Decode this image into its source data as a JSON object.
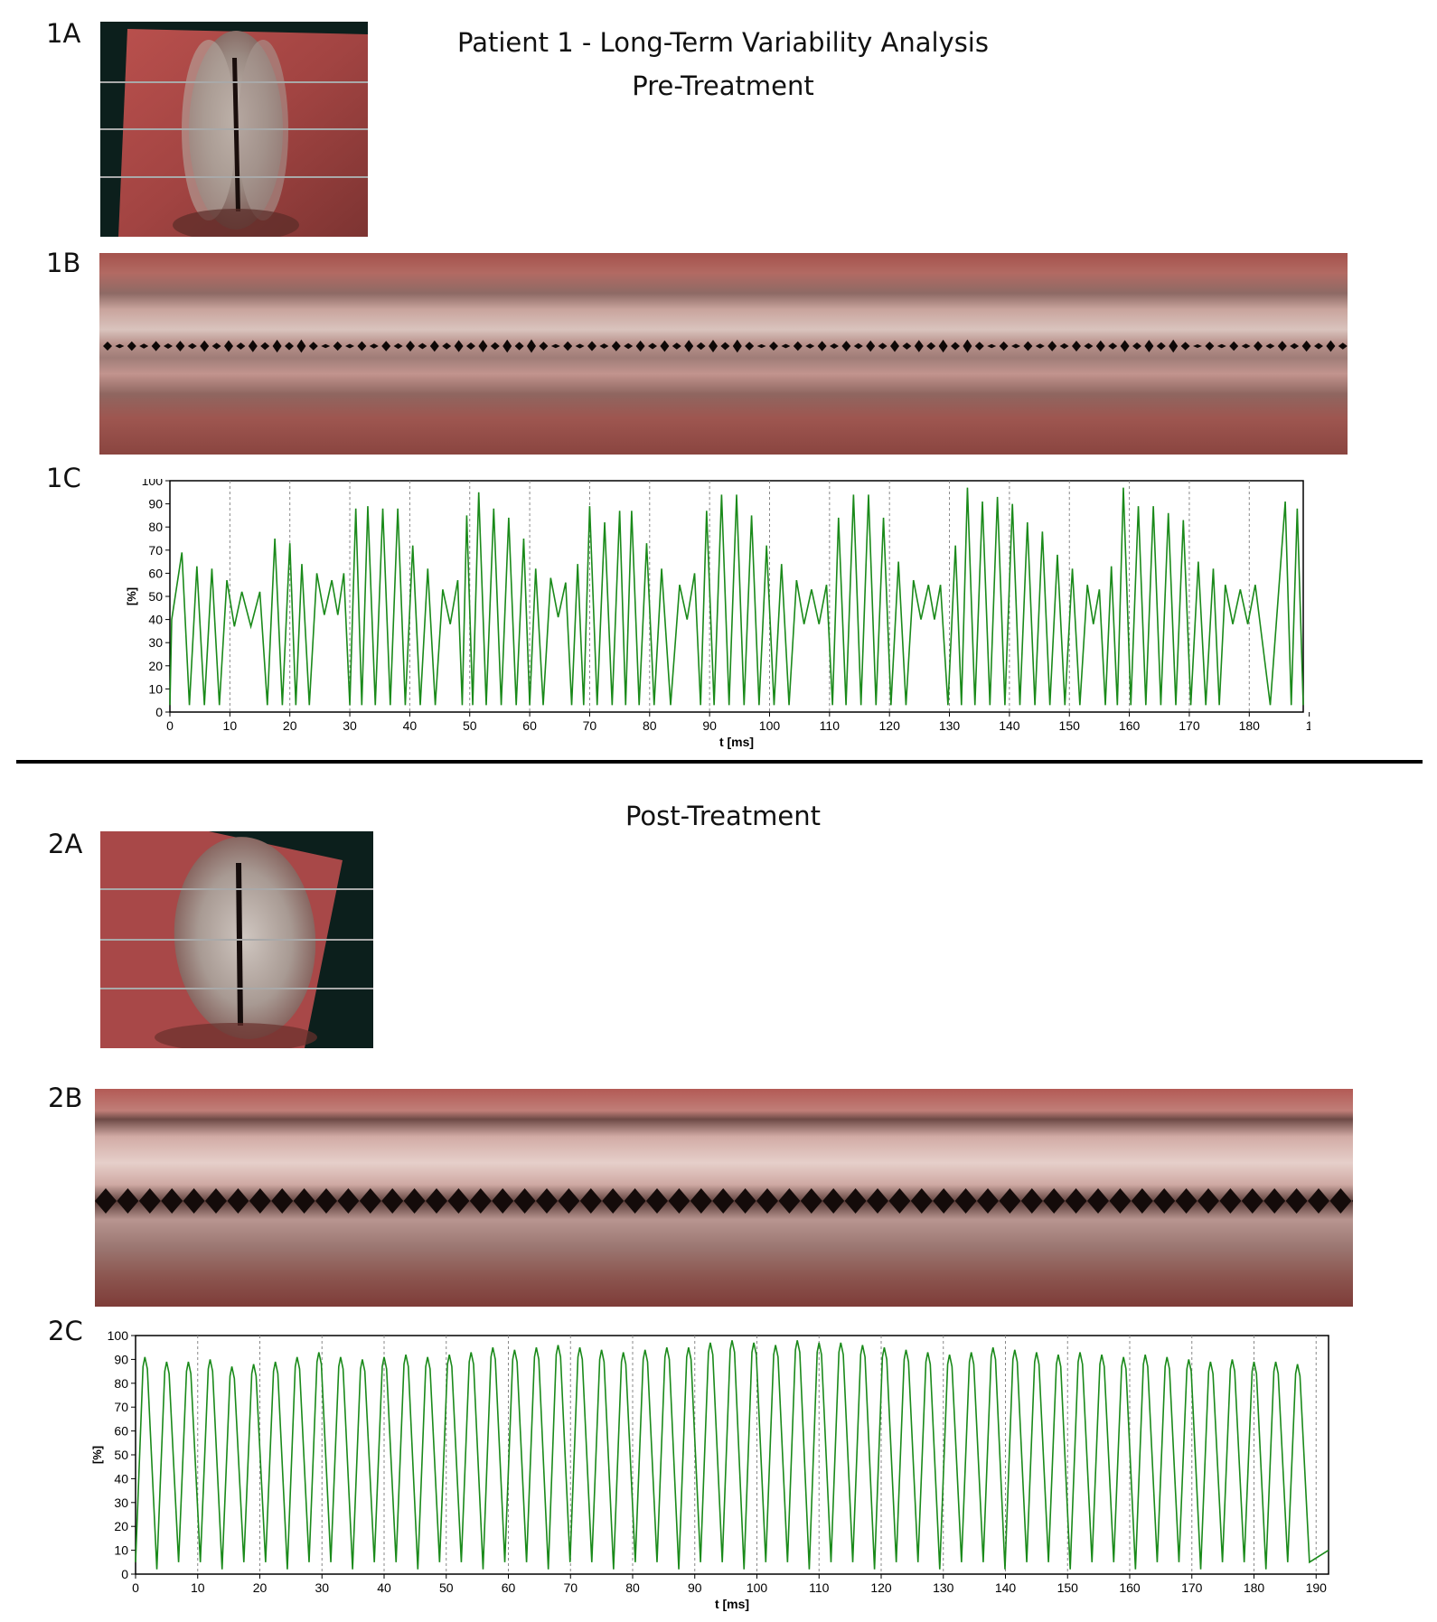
{
  "title": "Patient 1 - Long-Term Variability Analysis",
  "section_pre": "Pre-Treatment",
  "section_post": "Post-Treatment",
  "labels": {
    "p1a": "1A",
    "p1b": "1B",
    "p1c": "1C",
    "p2a": "2A",
    "p2b": "2B",
    "p2c": "2C"
  },
  "chart_data": [
    {
      "id": "1C",
      "type": "line",
      "xlabel": "t [ms]",
      "ylabel": "[%]",
      "xlim": [
        0,
        189
      ],
      "ylim": [
        0,
        100
      ],
      "xticks": [
        "0",
        "10",
        "20",
        "30",
        "40",
        "50",
        "60",
        "70",
        "80",
        "90",
        "100",
        "110",
        "120",
        "130",
        "140",
        "150",
        "160",
        "170",
        "180",
        "1"
      ],
      "yticks": [
        "0",
        "10",
        "20",
        "30",
        "40",
        "50",
        "60",
        "70",
        "80",
        "90",
        "100"
      ],
      "grid": "vertical dashed",
      "color": "#1a8a1a",
      "peaks": [
        {
          "t": 2,
          "v": 69
        },
        {
          "t": 4.5,
          "v": 63
        },
        {
          "t": 7,
          "v": 62
        },
        {
          "t": 9.5,
          "v": 57
        },
        {
          "t": 12,
          "v": 52
        },
        {
          "t": 15,
          "v": 52
        },
        {
          "t": 17.5,
          "v": 75
        },
        {
          "t": 20,
          "v": 73
        },
        {
          "t": 22,
          "v": 64
        },
        {
          "t": 24.5,
          "v": 60
        },
        {
          "t": 27,
          "v": 57
        },
        {
          "t": 29,
          "v": 60
        },
        {
          "t": 31,
          "v": 88
        },
        {
          "t": 33,
          "v": 89
        },
        {
          "t": 35.5,
          "v": 88
        },
        {
          "t": 38,
          "v": 88
        },
        {
          "t": 40.5,
          "v": 72
        },
        {
          "t": 43,
          "v": 62
        },
        {
          "t": 45.5,
          "v": 53
        },
        {
          "t": 48,
          "v": 57
        },
        {
          "t": 49.5,
          "v": 85
        },
        {
          "t": 51.5,
          "v": 95
        },
        {
          "t": 54,
          "v": 88
        },
        {
          "t": 56.5,
          "v": 84
        },
        {
          "t": 59,
          "v": 75
        },
        {
          "t": 61,
          "v": 62
        },
        {
          "t": 63.5,
          "v": 58
        },
        {
          "t": 66,
          "v": 56
        },
        {
          "t": 68,
          "v": 64
        },
        {
          "t": 70,
          "v": 89
        },
        {
          "t": 72.5,
          "v": 82
        },
        {
          "t": 75,
          "v": 87
        },
        {
          "t": 77,
          "v": 87
        },
        {
          "t": 79.5,
          "v": 73
        },
        {
          "t": 82,
          "v": 62
        },
        {
          "t": 85,
          "v": 55
        },
        {
          "t": 87.5,
          "v": 60
        },
        {
          "t": 89.5,
          "v": 87
        },
        {
          "t": 92,
          "v": 94
        },
        {
          "t": 94.5,
          "v": 94
        },
        {
          "t": 97,
          "v": 85
        },
        {
          "t": 99.5,
          "v": 72
        },
        {
          "t": 102,
          "v": 64
        },
        {
          "t": 104.5,
          "v": 57
        },
        {
          "t": 107,
          "v": 53
        },
        {
          "t": 109.5,
          "v": 55
        },
        {
          "t": 111.5,
          "v": 84
        },
        {
          "t": 114,
          "v": 94
        },
        {
          "t": 116.5,
          "v": 94
        },
        {
          "t": 119,
          "v": 84
        },
        {
          "t": 121.5,
          "v": 65
        },
        {
          "t": 124,
          "v": 57
        },
        {
          "t": 126.5,
          "v": 55
        },
        {
          "t": 128.5,
          "v": 55
        },
        {
          "t": 131,
          "v": 72
        },
        {
          "t": 133,
          "v": 97
        },
        {
          "t": 135.5,
          "v": 91
        },
        {
          "t": 138,
          "v": 93
        },
        {
          "t": 140.5,
          "v": 90
        },
        {
          "t": 143,
          "v": 82
        },
        {
          "t": 145.5,
          "v": 78
        },
        {
          "t": 148,
          "v": 68
        },
        {
          "t": 150.5,
          "v": 62
        },
        {
          "t": 153,
          "v": 55
        },
        {
          "t": 155,
          "v": 53
        },
        {
          "t": 157,
          "v": 63
        },
        {
          "t": 159,
          "v": 97
        },
        {
          "t": 161.5,
          "v": 89
        },
        {
          "t": 164,
          "v": 89
        },
        {
          "t": 166.5,
          "v": 86
        },
        {
          "t": 169,
          "v": 83
        },
        {
          "t": 171.5,
          "v": 65
        },
        {
          "t": 174,
          "v": 62
        },
        {
          "t": 176,
          "v": 55
        },
        {
          "t": 178.5,
          "v": 53
        },
        {
          "t": 181,
          "v": 55
        },
        {
          "t": 186,
          "v": 91
        },
        {
          "t": 188,
          "v": 88
        }
      ]
    },
    {
      "id": "2C",
      "type": "line",
      "xlabel": "t [ms]",
      "ylabel": "[%]",
      "xlim": [
        0,
        192
      ],
      "ylim": [
        0,
        100
      ],
      "xticks": [
        "0",
        "10",
        "20",
        "30",
        "40",
        "50",
        "60",
        "70",
        "80",
        "90",
        "100",
        "110",
        "120",
        "130",
        "140",
        "150",
        "160",
        "170",
        "180",
        "190"
      ],
      "yticks": [
        "0",
        "10",
        "20",
        "30",
        "40",
        "50",
        "60",
        "70",
        "80",
        "90",
        "100"
      ],
      "grid": "vertical dashed",
      "color": "#1a8a1a",
      "period_ms": 3.5,
      "peaks": [
        91,
        89,
        89,
        90,
        87,
        88,
        89,
        91,
        93,
        91,
        90,
        91,
        92,
        91,
        92,
        93,
        95,
        94,
        95,
        96,
        95,
        94,
        93,
        94,
        95,
        95,
        97,
        98,
        97,
        96,
        98,
        97,
        97,
        96,
        95,
        94,
        93,
        92,
        93,
        95,
        94,
        93,
        92,
        93,
        92,
        91,
        92,
        91,
        90,
        89,
        90,
        89,
        89,
        88
      ]
    }
  ]
}
